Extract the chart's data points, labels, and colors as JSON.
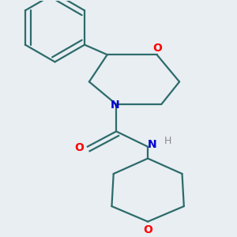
{
  "background_color": "#e8eef2",
  "bond_color": "#2d6b6b",
  "atom_colors": {
    "O": "#ff0000",
    "N": "#0000cc",
    "H": "#888888"
  },
  "line_width": 1.6,
  "font_size": 10,
  "figsize": [
    3.0,
    3.0
  ],
  "dpi": 100
}
